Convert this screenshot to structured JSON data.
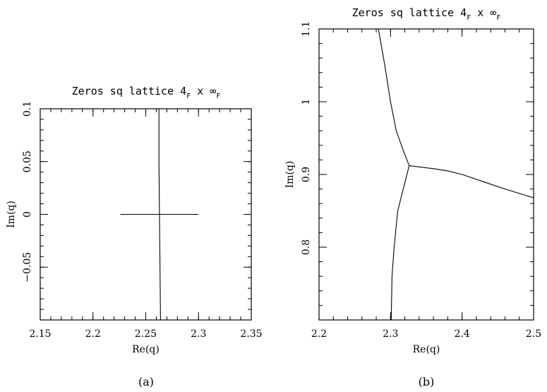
{
  "chart_data": [
    {
      "type": "line",
      "panel_label": "(a)",
      "title": {
        "main": "Zeros sq lattice 4",
        "sub1": "F",
        "mid": " x ∞",
        "sub2": "F"
      },
      "xlabel": "Re(q)",
      "ylabel": "Im(q)",
      "xlim": [
        2.15,
        2.35
      ],
      "ylim": [
        -0.1,
        0.1
      ],
      "xticks": [
        2.15,
        2.2,
        2.25,
        2.3,
        2.35
      ],
      "xtick_labels": [
        "2.15",
        "2.2",
        "2.25",
        "2.3",
        "2.35"
      ],
      "yticks": [
        -0.05,
        0,
        0.05,
        0.1
      ],
      "ytick_labels": [
        "−0.05",
        "0",
        "0.05",
        "0.1"
      ],
      "series": [
        {
          "x": [
            2.2625,
            2.2625,
            2.2635,
            2.264
          ],
          "y": [
            0.1,
            0.05,
            -0.05,
            -0.1
          ]
        },
        {
          "x": [
            2.226,
            2.3
          ],
          "y": [
            0.0,
            0.0
          ]
        }
      ]
    },
    {
      "type": "line",
      "panel_label": "(b)",
      "title": {
        "main": "Zeros sq lattice 4",
        "sub1": "F",
        "mid": " x ∞",
        "sub2": "F"
      },
      "xlabel": "Re(q)",
      "ylabel": "Im(q)",
      "xlim": [
        2.2,
        2.5
      ],
      "ylim": [
        0.7,
        1.1
      ],
      "xticks": [
        2.2,
        2.3,
        2.4,
        2.5
      ],
      "xtick_labels": [
        "2.2",
        "2.3",
        "2.4",
        "2.5"
      ],
      "yticks": [
        0.8,
        0.9,
        1.0,
        1.1
      ],
      "ytick_labels": [
        "0.8",
        "0.9",
        "1",
        "1.1"
      ],
      "series": [
        {
          "x": [
            2.283,
            2.292,
            2.3,
            2.308,
            2.317,
            2.326
          ],
          "y": [
            1.1,
            1.05,
            1.0,
            0.96,
            0.935,
            0.912
          ]
        },
        {
          "x": [
            2.326,
            2.31,
            2.305,
            2.302,
            2.301
          ],
          "y": [
            0.912,
            0.85,
            0.8,
            0.76,
            0.7
          ]
        },
        {
          "x": [
            2.326,
            2.36,
            2.38,
            2.4,
            2.43,
            2.46,
            2.5
          ],
          "y": [
            0.912,
            0.908,
            0.905,
            0.9,
            0.89,
            0.88,
            0.868
          ]
        }
      ]
    }
  ]
}
